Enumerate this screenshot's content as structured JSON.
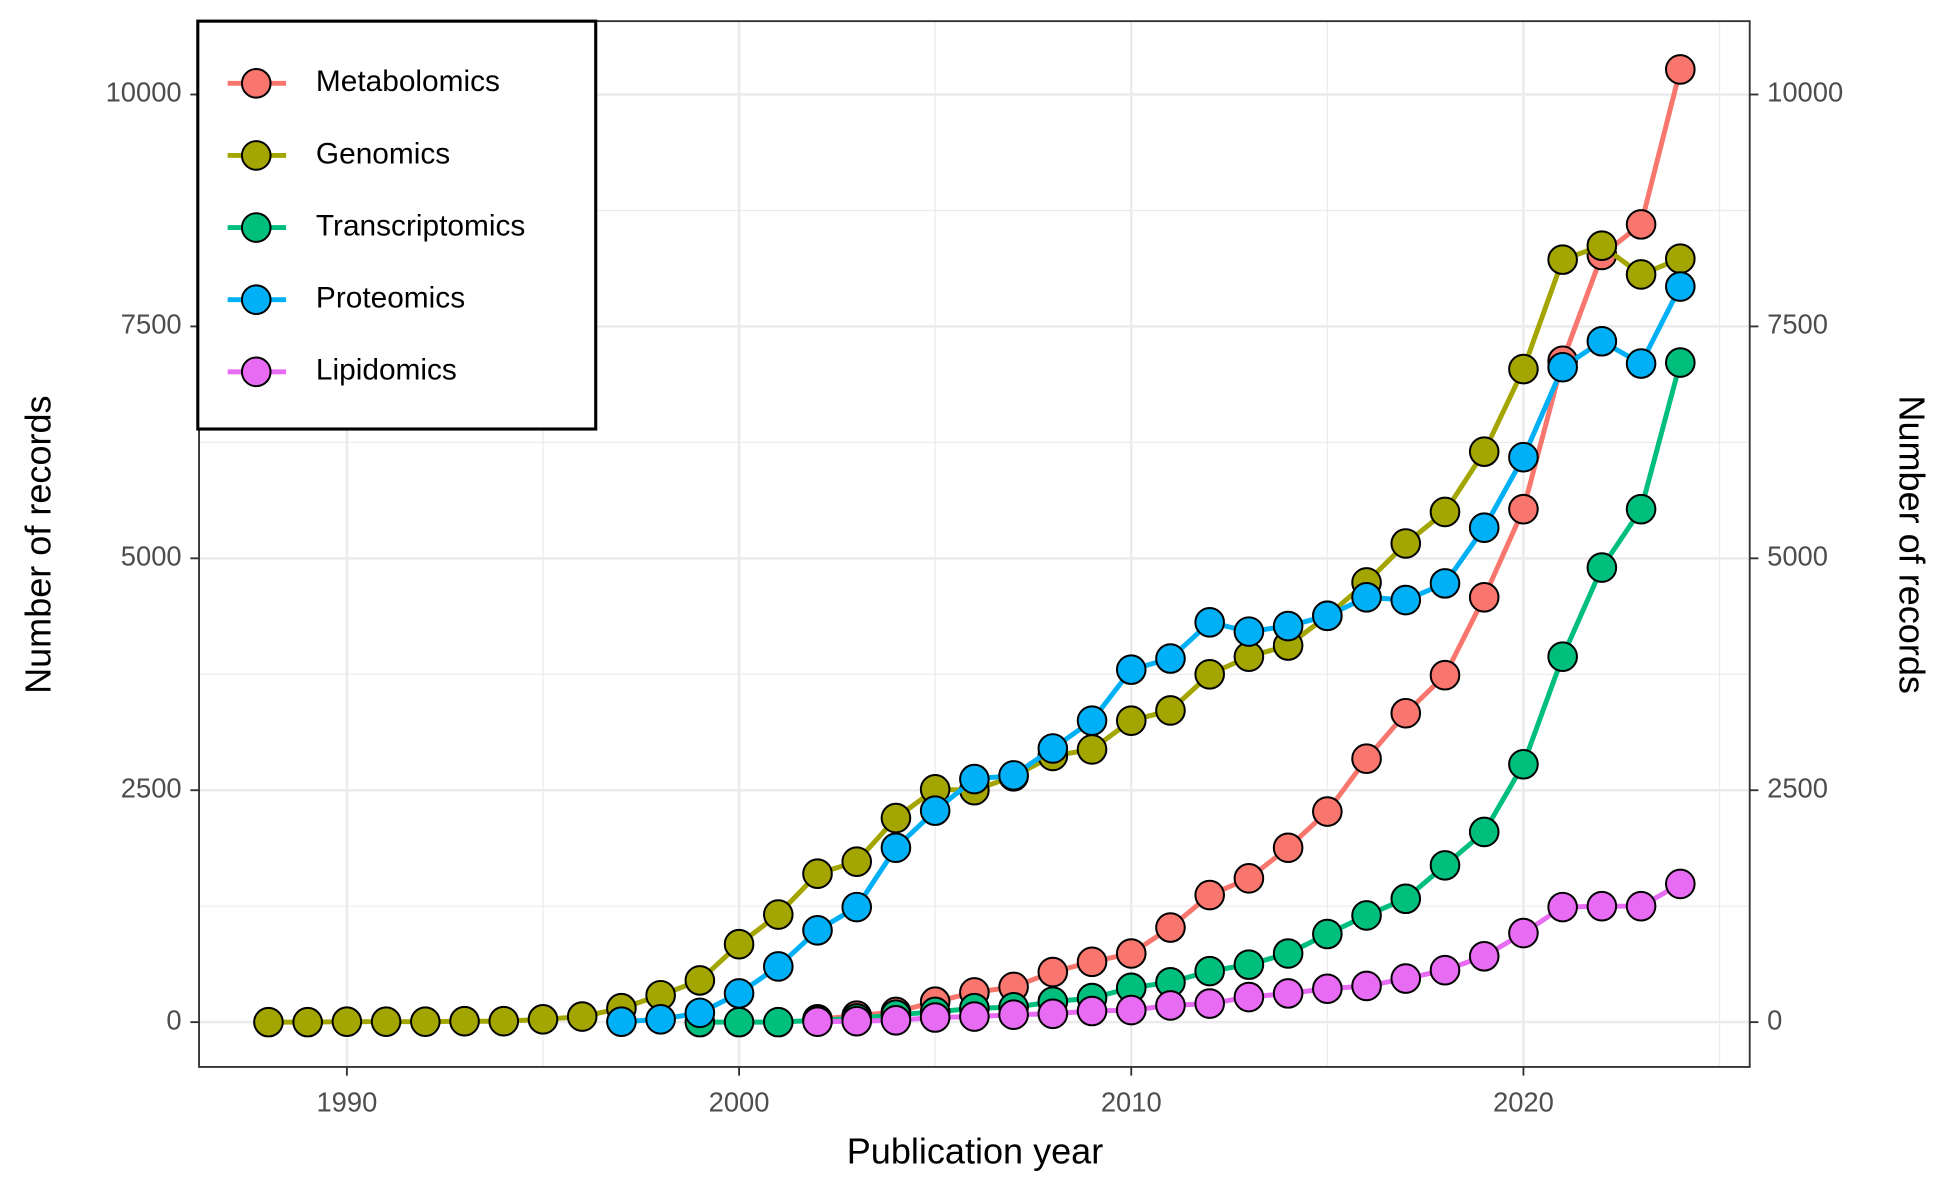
{
  "chart_data": {
    "type": "line",
    "x_label": "Publication year",
    "y_label": "Number of records",
    "y2_label": "Number of records",
    "xlim": [
      1986.23,
      2025.77
    ],
    "xticks": [
      1990,
      2000,
      2010,
      2020
    ],
    "x_minor_grid": [
      1995,
      2005,
      2015,
      2025
    ],
    "ylim": [
      -483,
      10791
    ],
    "yticks": [
      0,
      2500,
      5000,
      7500,
      10000
    ],
    "y_minor_grid": [
      1250,
      3750,
      6250,
      8750
    ],
    "y2lim": [
      -483,
      10791
    ],
    "y2ticks": [
      0,
      2500,
      5000,
      7500,
      10000
    ],
    "grid": true,
    "legend": "top-left",
    "series": [
      {
        "name": "Metabolomics",
        "color": "#f8766d",
        "x": [
          2002,
          2003,
          2004,
          2005,
          2006,
          2007,
          2008,
          2009,
          2010,
          2011,
          2012,
          2013,
          2014,
          2015,
          2016,
          2017,
          2018,
          2019,
          2020,
          2021,
          2022,
          2023,
          2024
        ],
        "values": [
          30,
          70,
          110,
          220,
          320,
          380,
          540,
          650,
          740,
          1020,
          1370,
          1550,
          1880,
          2270,
          2840,
          3330,
          3740,
          4580,
          5530,
          7130,
          8270,
          8600,
          10270
        ]
      },
      {
        "name": "Genomics",
        "color": "#a3a500",
        "x": [
          1988,
          1989,
          1990,
          1991,
          1992,
          1993,
          1994,
          1995,
          1996,
          1997,
          1998,
          1999,
          2000,
          2001,
          2002,
          2003,
          2004,
          2005,
          2006,
          2007,
          2008,
          2009,
          2010,
          2011,
          2012,
          2013,
          2014,
          2015,
          2016,
          2017,
          2018,
          2019,
          2020,
          2021,
          2022,
          2023,
          2024
        ],
        "values": [
          0,
          0,
          5,
          5,
          5,
          10,
          10,
          30,
          60,
          150,
          290,
          450,
          840,
          1160,
          1600,
          1730,
          2200,
          2510,
          2500,
          2650,
          2870,
          2940,
          3250,
          3360,
          3750,
          3940,
          4060,
          4380,
          4740,
          5160,
          5500,
          6150,
          7040,
          8220,
          8370,
          8060,
          8230
        ]
      },
      {
        "name": "Transcriptomics",
        "color": "#00bf7d",
        "x": [
          1999,
          2000,
          2001,
          2002,
          2003,
          2004,
          2005,
          2006,
          2007,
          2008,
          2009,
          2010,
          2011,
          2012,
          2013,
          2014,
          2015,
          2016,
          2017,
          2018,
          2019,
          2020,
          2021,
          2022,
          2023,
          2024
        ],
        "values": [
          0,
          0,
          0,
          20,
          40,
          80,
          110,
          150,
          160,
          220,
          260,
          370,
          430,
          550,
          620,
          740,
          950,
          1150,
          1330,
          1690,
          2050,
          2780,
          3940,
          4900,
          5530,
          7110
        ]
      },
      {
        "name": "Proteomics",
        "color": "#00b0f6",
        "x": [
          1997,
          1998,
          1999,
          2000,
          2001,
          2002,
          2003,
          2004,
          2005,
          2006,
          2007,
          2008,
          2009,
          2010,
          2011,
          2012,
          2013,
          2014,
          2015,
          2016,
          2017,
          2018,
          2019,
          2020,
          2021,
          2022,
          2023,
          2024
        ],
        "values": [
          5,
          30,
          100,
          310,
          600,
          990,
          1240,
          1880,
          2280,
          2620,
          2660,
          2950,
          3250,
          3800,
          3920,
          4310,
          4210,
          4270,
          4380,
          4580,
          4550,
          4730,
          5330,
          6090,
          7060,
          7340,
          7100,
          7930
        ]
      },
      {
        "name": "Lipidomics",
        "color": "#e76bf3",
        "x": [
          2002,
          2003,
          2004,
          2005,
          2006,
          2007,
          2008,
          2009,
          2010,
          2011,
          2012,
          2013,
          2014,
          2015,
          2016,
          2017,
          2018,
          2019,
          2020,
          2021,
          2022,
          2023,
          2024
        ],
        "values": [
          5,
          10,
          20,
          50,
          60,
          80,
          90,
          120,
          130,
          180,
          200,
          270,
          310,
          360,
          390,
          470,
          560,
          710,
          960,
          1240,
          1250,
          1250,
          1490
        ]
      }
    ]
  }
}
